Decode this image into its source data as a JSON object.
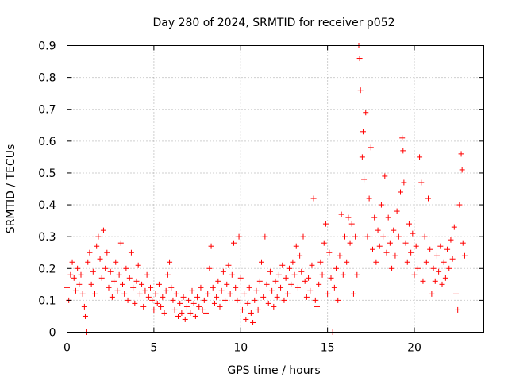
{
  "chart_data": {
    "type": "scatter",
    "title": "Day 280 of 2024, SRMTID for receiver p052",
    "xlabel": "GPS time / hours",
    "ylabel": "SRMTID / TECUs",
    "xlim": [
      0,
      24
    ],
    "ylim": [
      0,
      0.9
    ],
    "xticks": [
      0,
      5,
      10,
      15,
      20
    ],
    "yticks": [
      0,
      0.1,
      0.2,
      0.3,
      0.4,
      0.5,
      0.6,
      0.7,
      0.8,
      0.9
    ],
    "grid": true,
    "marker": "plus",
    "color": "#ff0000",
    "series": [
      {
        "name": "SRMTID",
        "points": [
          [
            0.0,
            0.14
          ],
          [
            0.1,
            0.1
          ],
          [
            0.2,
            0.18
          ],
          [
            0.3,
            0.22
          ],
          [
            0.4,
            0.17
          ],
          [
            0.5,
            0.13
          ],
          [
            0.6,
            0.2
          ],
          [
            0.7,
            0.15
          ],
          [
            0.8,
            0.18
          ],
          [
            0.9,
            0.12
          ],
          [
            1.0,
            0.08
          ],
          [
            1.05,
            0.05
          ],
          [
            1.1,
            0.0
          ],
          [
            1.2,
            0.22
          ],
          [
            1.3,
            0.25
          ],
          [
            1.4,
            0.15
          ],
          [
            1.5,
            0.19
          ],
          [
            1.6,
            0.12
          ],
          [
            1.7,
            0.27
          ],
          [
            1.8,
            0.3
          ],
          [
            1.9,
            0.23
          ],
          [
            2.0,
            0.17
          ],
          [
            2.1,
            0.32
          ],
          [
            2.2,
            0.2
          ],
          [
            2.3,
            0.25
          ],
          [
            2.4,
            0.14
          ],
          [
            2.5,
            0.19
          ],
          [
            2.6,
            0.11
          ],
          [
            2.7,
            0.16
          ],
          [
            2.8,
            0.22
          ],
          [
            2.9,
            0.13
          ],
          [
            3.0,
            0.18
          ],
          [
            3.1,
            0.28
          ],
          [
            3.2,
            0.15
          ],
          [
            3.3,
            0.12
          ],
          [
            3.4,
            0.2
          ],
          [
            3.5,
            0.1
          ],
          [
            3.6,
            0.17
          ],
          [
            3.7,
            0.25
          ],
          [
            3.8,
            0.14
          ],
          [
            3.9,
            0.09
          ],
          [
            4.0,
            0.16
          ],
          [
            4.1,
            0.21
          ],
          [
            4.2,
            0.12
          ],
          [
            4.3,
            0.15
          ],
          [
            4.4,
            0.08
          ],
          [
            4.5,
            0.13
          ],
          [
            4.6,
            0.18
          ],
          [
            4.7,
            0.11
          ],
          [
            4.8,
            0.14
          ],
          [
            4.9,
            0.1
          ],
          [
            5.0,
            0.07
          ],
          [
            5.1,
            0.12
          ],
          [
            5.2,
            0.09
          ],
          [
            5.3,
            0.15
          ],
          [
            5.4,
            0.08
          ],
          [
            5.5,
            0.11
          ],
          [
            5.6,
            0.06
          ],
          [
            5.7,
            0.13
          ],
          [
            5.8,
            0.18
          ],
          [
            5.9,
            0.22
          ],
          [
            6.0,
            0.14
          ],
          [
            6.1,
            0.1
          ],
          [
            6.2,
            0.07
          ],
          [
            6.3,
            0.12
          ],
          [
            6.4,
            0.05
          ],
          [
            6.5,
            0.09
          ],
          [
            6.6,
            0.06
          ],
          [
            6.7,
            0.11
          ],
          [
            6.8,
            0.04
          ],
          [
            6.9,
            0.08
          ],
          [
            7.0,
            0.1
          ],
          [
            7.1,
            0.06
          ],
          [
            7.2,
            0.13
          ],
          [
            7.3,
            0.09
          ],
          [
            7.4,
            0.05
          ],
          [
            7.5,
            0.11
          ],
          [
            7.6,
            0.08
          ],
          [
            7.7,
            0.14
          ],
          [
            7.8,
            0.07
          ],
          [
            7.9,
            0.1
          ],
          [
            8.0,
            0.06
          ],
          [
            8.1,
            0.12
          ],
          [
            8.2,
            0.2
          ],
          [
            8.3,
            0.27
          ],
          [
            8.4,
            0.14
          ],
          [
            8.5,
            0.09
          ],
          [
            8.6,
            0.11
          ],
          [
            8.7,
            0.16
          ],
          [
            8.8,
            0.08
          ],
          [
            8.9,
            0.13
          ],
          [
            9.0,
            0.19
          ],
          [
            9.1,
            0.1
          ],
          [
            9.2,
            0.15
          ],
          [
            9.3,
            0.21
          ],
          [
            9.4,
            0.12
          ],
          [
            9.5,
            0.18
          ],
          [
            9.6,
            0.28
          ],
          [
            9.7,
            0.14
          ],
          [
            9.8,
            0.1
          ],
          [
            9.9,
            0.3
          ],
          [
            10.0,
            0.17
          ],
          [
            10.1,
            0.07
          ],
          [
            10.2,
            0.12
          ],
          [
            10.3,
            0.04
          ],
          [
            10.4,
            0.09
          ],
          [
            10.5,
            0.14
          ],
          [
            10.6,
            0.06
          ],
          [
            10.7,
            0.03
          ],
          [
            10.8,
            0.1
          ],
          [
            10.9,
            0.13
          ],
          [
            11.0,
            0.07
          ],
          [
            11.1,
            0.16
          ],
          [
            11.2,
            0.22
          ],
          [
            11.3,
            0.11
          ],
          [
            11.4,
            0.3
          ],
          [
            11.5,
            0.15
          ],
          [
            11.6,
            0.09
          ],
          [
            11.7,
            0.19
          ],
          [
            11.8,
            0.13
          ],
          [
            11.9,
            0.08
          ],
          [
            12.0,
            0.16
          ],
          [
            12.1,
            0.11
          ],
          [
            12.2,
            0.18
          ],
          [
            12.3,
            0.14
          ],
          [
            12.4,
            0.21
          ],
          [
            12.5,
            0.1
          ],
          [
            12.6,
            0.17
          ],
          [
            12.7,
            0.12
          ],
          [
            12.8,
            0.2
          ],
          [
            12.9,
            0.15
          ],
          [
            13.0,
            0.22
          ],
          [
            13.1,
            0.18
          ],
          [
            13.2,
            0.27
          ],
          [
            13.3,
            0.14
          ],
          [
            13.4,
            0.24
          ],
          [
            13.5,
            0.19
          ],
          [
            13.6,
            0.3
          ],
          [
            13.7,
            0.16
          ],
          [
            13.8,
            0.11
          ],
          [
            13.9,
            0.17
          ],
          [
            14.0,
            0.13
          ],
          [
            14.1,
            0.21
          ],
          [
            14.2,
            0.42
          ],
          [
            14.3,
            0.1
          ],
          [
            14.4,
            0.08
          ],
          [
            14.5,
            0.15
          ],
          [
            14.6,
            0.22
          ],
          [
            14.7,
            0.18
          ],
          [
            14.8,
            0.28
          ],
          [
            14.9,
            0.34
          ],
          [
            15.0,
            0.12
          ],
          [
            15.1,
            0.25
          ],
          [
            15.2,
            0.17
          ],
          [
            15.3,
            0.0
          ],
          [
            15.4,
            0.14
          ],
          [
            15.5,
            0.2
          ],
          [
            15.6,
            0.1
          ],
          [
            15.7,
            0.24
          ],
          [
            15.8,
            0.37
          ],
          [
            15.9,
            0.18
          ],
          [
            16.0,
            0.3
          ],
          [
            16.1,
            0.22
          ],
          [
            16.2,
            0.36
          ],
          [
            16.3,
            0.28
          ],
          [
            16.4,
            0.34
          ],
          [
            16.5,
            0.12
          ],
          [
            16.6,
            0.3
          ],
          [
            16.7,
            0.18
          ],
          [
            16.8,
            0.9
          ],
          [
            16.85,
            0.86
          ],
          [
            16.9,
            0.76
          ],
          [
            17.0,
            0.55
          ],
          [
            17.05,
            0.63
          ],
          [
            17.1,
            0.48
          ],
          [
            17.2,
            0.69
          ],
          [
            17.3,
            0.3
          ],
          [
            17.4,
            0.42
          ],
          [
            17.5,
            0.58
          ],
          [
            17.6,
            0.26
          ],
          [
            17.7,
            0.36
          ],
          [
            17.8,
            0.22
          ],
          [
            17.9,
            0.32
          ],
          [
            18.0,
            0.27
          ],
          [
            18.1,
            0.4
          ],
          [
            18.2,
            0.3
          ],
          [
            18.3,
            0.49
          ],
          [
            18.4,
            0.25
          ],
          [
            18.5,
            0.36
          ],
          [
            18.6,
            0.28
          ],
          [
            18.7,
            0.2
          ],
          [
            18.8,
            0.32
          ],
          [
            18.9,
            0.24
          ],
          [
            19.0,
            0.38
          ],
          [
            19.1,
            0.3
          ],
          [
            19.2,
            0.44
          ],
          [
            19.3,
            0.61
          ],
          [
            19.35,
            0.57
          ],
          [
            19.4,
            0.47
          ],
          [
            19.5,
            0.28
          ],
          [
            19.6,
            0.22
          ],
          [
            19.7,
            0.34
          ],
          [
            19.8,
            0.25
          ],
          [
            19.9,
            0.31
          ],
          [
            20.0,
            0.18
          ],
          [
            20.1,
            0.27
          ],
          [
            20.2,
            0.2
          ],
          [
            20.3,
            0.55
          ],
          [
            20.4,
            0.47
          ],
          [
            20.5,
            0.16
          ],
          [
            20.6,
            0.3
          ],
          [
            20.7,
            0.22
          ],
          [
            20.8,
            0.42
          ],
          [
            20.9,
            0.26
          ],
          [
            21.0,
            0.12
          ],
          [
            21.1,
            0.2
          ],
          [
            21.2,
            0.16
          ],
          [
            21.3,
            0.24
          ],
          [
            21.4,
            0.19
          ],
          [
            21.5,
            0.27
          ],
          [
            21.6,
            0.15
          ],
          [
            21.7,
            0.22
          ],
          [
            21.8,
            0.17
          ],
          [
            21.9,
            0.26
          ],
          [
            22.0,
            0.2
          ],
          [
            22.1,
            0.29
          ],
          [
            22.2,
            0.23
          ],
          [
            22.3,
            0.33
          ],
          [
            22.4,
            0.12
          ],
          [
            22.5,
            0.07
          ],
          [
            22.6,
            0.4
          ],
          [
            22.7,
            0.56
          ],
          [
            22.75,
            0.51
          ],
          [
            22.8,
            0.28
          ],
          [
            22.9,
            0.24
          ]
        ]
      }
    ]
  }
}
